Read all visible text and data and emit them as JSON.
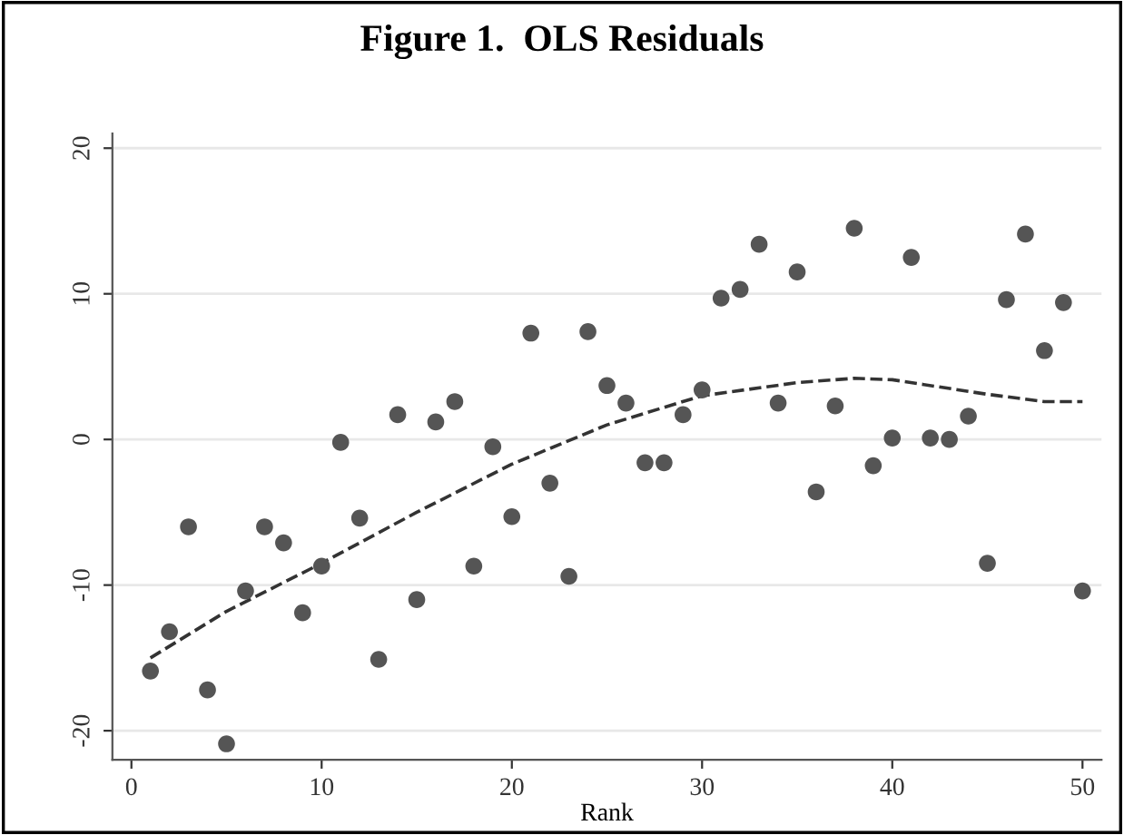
{
  "chart_data": {
    "type": "scatter",
    "title": "Figure 1.  OLS Residuals",
    "xlabel": "Rank",
    "xlim": [
      -1,
      51
    ],
    "xticks": [
      0,
      10,
      20,
      30,
      40,
      50
    ],
    "ylim": [
      -22,
      21
    ],
    "yticks": [
      -20,
      -10,
      0,
      10,
      20
    ],
    "grid": "y",
    "series": [
      {
        "marker": "circle",
        "color": "#555555",
        "x": [
          1,
          2,
          3,
          4,
          5,
          6,
          7,
          8,
          9,
          10,
          11,
          12,
          13,
          14,
          15,
          16,
          17,
          18,
          19,
          20,
          21,
          22,
          23,
          24,
          25,
          26,
          27,
          28,
          29,
          30,
          31,
          32,
          33,
          34,
          35,
          36,
          37,
          38,
          39,
          40,
          41,
          42,
          43,
          44,
          45,
          46,
          47,
          48,
          49,
          50
        ],
        "values": [
          -15.9,
          -13.2,
          -6.0,
          -17.2,
          -20.9,
          -10.4,
          -6.0,
          -7.1,
          -11.9,
          -8.7,
          -0.2,
          -5.4,
          -15.1,
          1.7,
          -11.0,
          1.2,
          2.6,
          -8.7,
          -0.5,
          -5.3,
          7.3,
          -3.0,
          -9.4,
          7.4,
          3.7,
          2.5,
          -1.6,
          -1.6,
          1.7,
          3.4,
          9.7,
          10.3,
          13.4,
          2.5,
          11.5,
          -3.6,
          2.3,
          14.5,
          -1.8,
          0.1,
          12.5,
          0.1,
          0.0,
          1.6,
          -8.5,
          9.6,
          14.1,
          6.1,
          9.4,
          -10.4
        ]
      },
      {
        "type": "line",
        "color": "#333333",
        "line_style": "dashed",
        "x": [
          1,
          5,
          10,
          15,
          20,
          25,
          30,
          35,
          38,
          40,
          45,
          48,
          50
        ],
        "values": [
          -15.0,
          -11.8,
          -8.5,
          -5.0,
          -1.7,
          1.0,
          3.0,
          3.9,
          4.2,
          4.1,
          3.1,
          2.6,
          2.6
        ]
      }
    ]
  }
}
